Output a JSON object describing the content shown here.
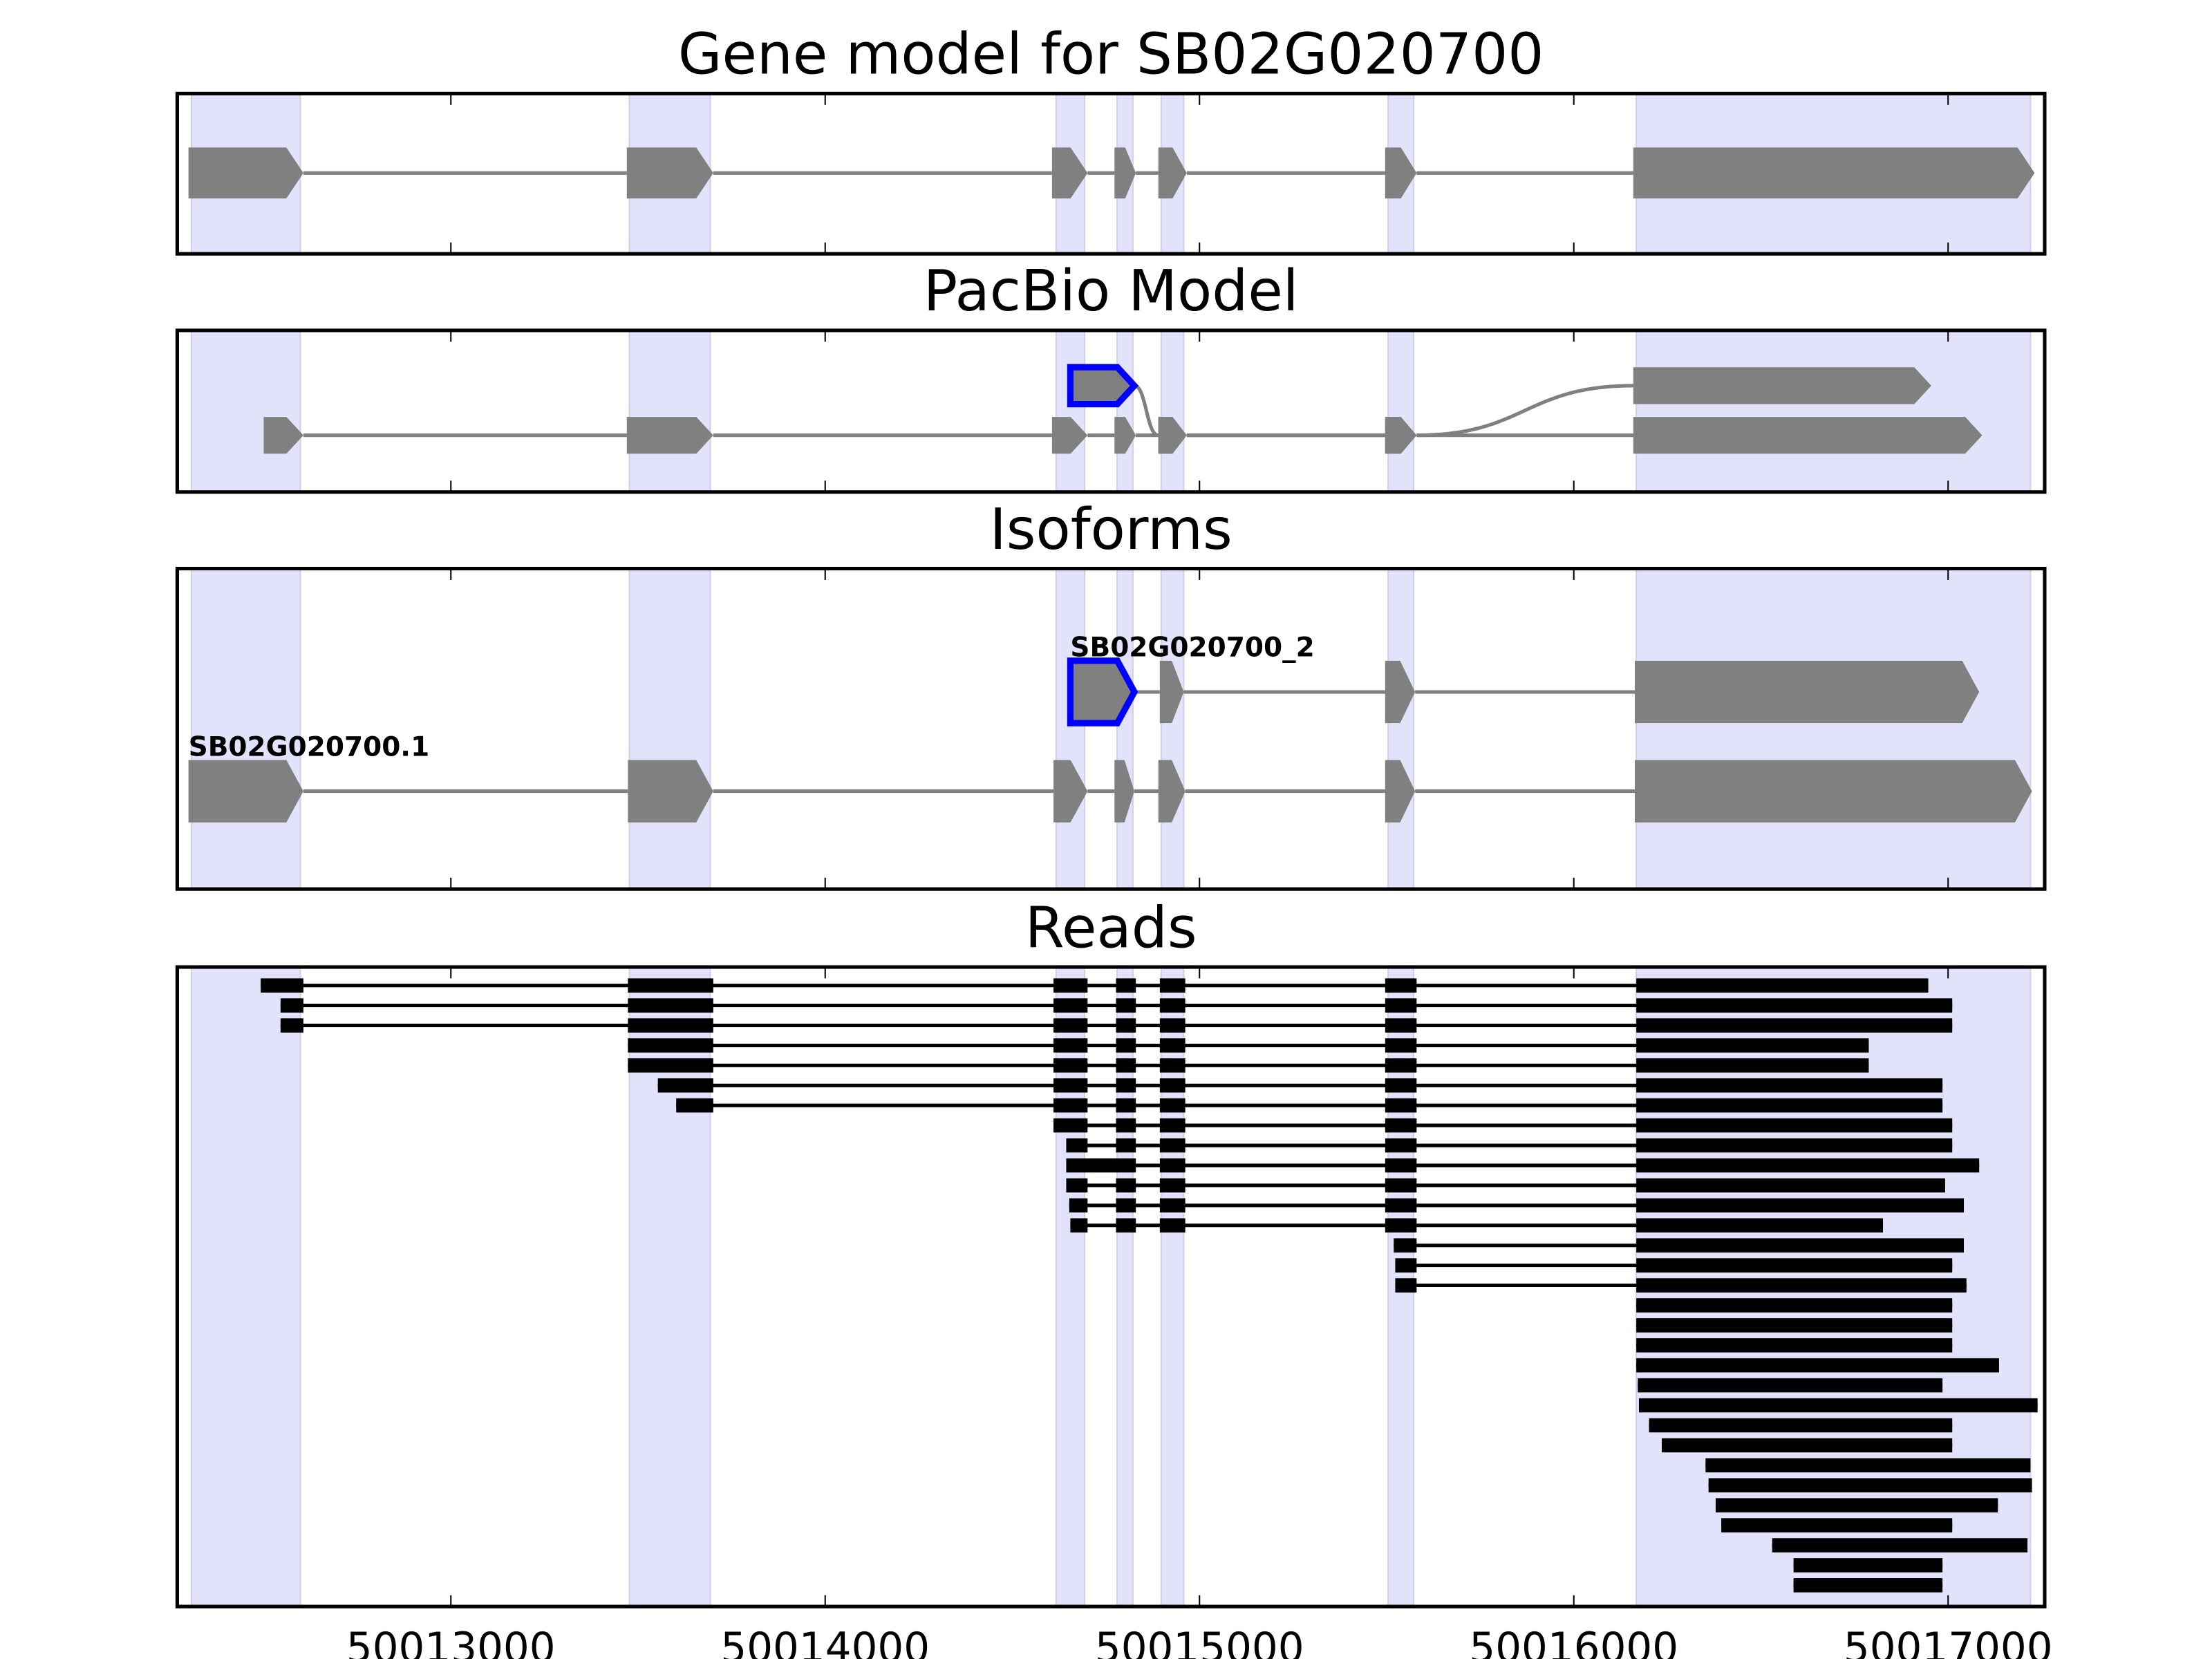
{
  "chart_data": {
    "type": "gene-track",
    "xlim": [
      50012269,
      50017258
    ],
    "xticks": [
      50013000,
      50014000,
      50015000,
      50016000,
      50017000
    ],
    "xtick_labels": [
      "50013000",
      "50014000",
      "50015000",
      "50016000",
      "50017000"
    ],
    "colors": {
      "shade": "#e2e2fb",
      "shade_edge": "#cfcfee",
      "exon": "#808080",
      "intron": "#808080",
      "highlight": "#0000ff",
      "read": "#000000"
    },
    "shaded_regions": [
      [
        50012307,
        50012598
      ],
      [
        50013477,
        50013693
      ],
      [
        50014617,
        50014693
      ],
      [
        50014780,
        50014822
      ],
      [
        50014898,
        50014958
      ],
      [
        50015504,
        50015572
      ],
      [
        50016167,
        50017220
      ]
    ],
    "panels": [
      {
        "title": "Gene model for SB02G020700",
        "transcripts": [
          {
            "exons": [
              [
                50012299,
                50012606,
                0
              ],
              [
                50013470,
                50013701,
                0
              ],
              [
                50014606,
                50014701,
                0
              ],
              [
                50014773,
                50014830,
                0
              ],
              [
                50014890,
                50014966,
                0
              ],
              [
                50015496,
                50015580,
                0
              ],
              [
                50016159,
                50017231,
                0
              ]
            ]
          }
        ]
      },
      {
        "title": "PacBio Model",
        "transcripts": [
          {
            "exons": [
              [
                50012500,
                50012606,
                1
              ],
              [
                50013470,
                50013701,
                1
              ],
              [
                50014606,
                50014701,
                1
              ],
              [
                50014773,
                50014830,
                1
              ],
              [
                50014890,
                50014966,
                1
              ],
              [
                50015496,
                50015580,
                1
              ],
              [
                50016159,
                50017091,
                1
              ]
            ]
          },
          {
            "exons": [
              [
                50014655,
                50014826,
                0,
                "highlight"
              ],
              [
                50014890,
                50014966,
                1
              ],
              [
                50015496,
                50015580,
                1
              ],
              [
                50016159,
                50016955,
                0
              ]
            ]
          }
        ]
      },
      {
        "title": "Isoforms",
        "transcripts": [
          {
            "label": "SB02G020700_2",
            "exons": [
              [
                50014655,
                50014826,
                0,
                "highlight"
              ],
              [
                50014894,
                50014958,
                0
              ],
              [
                50015496,
                50015576,
                0
              ],
              [
                50016163,
                50017083,
                0
              ]
            ]
          },
          {
            "label": "SB02G020700.1",
            "exons": [
              [
                50012299,
                50012606,
                1
              ],
              [
                50013473,
                50013701,
                1
              ],
              [
                50014610,
                50014701,
                1
              ],
              [
                50014773,
                50014826,
                1
              ],
              [
                50014890,
                50014962,
                1
              ],
              [
                50015496,
                50015576,
                1
              ],
              [
                50016163,
                50017224,
                1
              ]
            ]
          }
        ]
      },
      {
        "title": "Reads",
        "reads": [
          [
            [
              50012492,
              50012606
            ],
            [
              50013473,
              50013701
            ],
            [
              50014610,
              50014701
            ],
            [
              50014777,
              50014830
            ],
            [
              50014894,
              50014962
            ],
            [
              50015496,
              50015580
            ],
            [
              50016167,
              50016947
            ]
          ],
          [
            [
              50012545,
              50012606
            ],
            [
              50013473,
              50013701
            ],
            [
              50014610,
              50014701
            ],
            [
              50014777,
              50014830
            ],
            [
              50014894,
              50014962
            ],
            [
              50015496,
              50015580
            ],
            [
              50016167,
              50017011
            ]
          ],
          [
            [
              50012545,
              50012606
            ],
            [
              50013473,
              50013701
            ],
            [
              50014610,
              50014701
            ],
            [
              50014777,
              50014830
            ],
            [
              50014894,
              50014962
            ],
            [
              50015496,
              50015580
            ],
            [
              50016167,
              50017011
            ]
          ],
          [
            [
              50013473,
              50013701
            ],
            [
              50014610,
              50014701
            ],
            [
              50014777,
              50014830
            ],
            [
              50014894,
              50014962
            ],
            [
              50015496,
              50015580
            ],
            [
              50016167,
              50016788
            ]
          ],
          [
            [
              50013473,
              50013701
            ],
            [
              50014610,
              50014701
            ],
            [
              50014777,
              50014830
            ],
            [
              50014894,
              50014962
            ],
            [
              50015496,
              50015580
            ],
            [
              50016167,
              50016788
            ]
          ],
          [
            [
              50013553,
              50013701
            ],
            [
              50014610,
              50014701
            ],
            [
              50014777,
              50014830
            ],
            [
              50014894,
              50014962
            ],
            [
              50015496,
              50015580
            ],
            [
              50016167,
              50016985
            ]
          ],
          [
            [
              50013602,
              50013701
            ],
            [
              50014610,
              50014701
            ],
            [
              50014777,
              50014830
            ],
            [
              50014894,
              50014962
            ],
            [
              50015496,
              50015580
            ],
            [
              50016167,
              50016985
            ]
          ],
          [
            [
              50014610,
              50014701
            ],
            [
              50014777,
              50014830
            ],
            [
              50014894,
              50014962
            ],
            [
              50015496,
              50015580
            ],
            [
              50016167,
              50017011
            ]
          ],
          [
            [
              50014644,
              50014701
            ],
            [
              50014777,
              50014830
            ],
            [
              50014894,
              50014962
            ],
            [
              50015496,
              50015580
            ],
            [
              50016167,
              50017011
            ]
          ],
          [
            [
              50014644,
              50014830
            ],
            [
              50014894,
              50014962
            ],
            [
              50015496,
              50015580
            ],
            [
              50016167,
              50017083
            ]
          ],
          [
            [
              50014644,
              50014701
            ],
            [
              50014777,
              50014830
            ],
            [
              50014894,
              50014962
            ],
            [
              50015496,
              50015580
            ],
            [
              50016167,
              50016992
            ]
          ],
          [
            [
              50014652,
              50014701
            ],
            [
              50014777,
              50014830
            ],
            [
              50014894,
              50014962
            ],
            [
              50015496,
              50015580
            ],
            [
              50016167,
              50017042
            ]
          ],
          [
            [
              50014655,
              50014701
            ],
            [
              50014777,
              50014830
            ],
            [
              50014894,
              50014962
            ],
            [
              50015496,
              50015580
            ],
            [
              50016167,
              50016826
            ]
          ],
          [
            [
              50015519,
              50015580
            ],
            [
              50016167,
              50017042
            ]
          ],
          [
            [
              50015523,
              50015580
            ],
            [
              50016167,
              50017011
            ]
          ],
          [
            [
              50015523,
              50015580
            ],
            [
              50016167,
              50017049
            ]
          ],
          [
            [
              50016167,
              50017011
            ]
          ],
          [
            [
              50016167,
              50017011
            ]
          ],
          [
            [
              50016167,
              50017011
            ]
          ],
          [
            [
              50016167,
              50017136
            ]
          ],
          [
            [
              50016171,
              50016985
            ]
          ],
          [
            [
              50016174,
              50017239
            ]
          ],
          [
            [
              50016201,
              50017011
            ]
          ],
          [
            [
              50016235,
              50017011
            ]
          ],
          [
            [
              50016352,
              50017220
            ]
          ],
          [
            [
              50016360,
              50017224
            ]
          ],
          [
            [
              50016379,
              50017133
            ]
          ],
          [
            [
              50016394,
              50017011
            ]
          ],
          [
            [
              50016530,
              50017212
            ]
          ],
          [
            [
              50016587,
              50016985
            ]
          ],
          [
            [
              50016587,
              50016985
            ]
          ]
        ]
      }
    ]
  }
}
